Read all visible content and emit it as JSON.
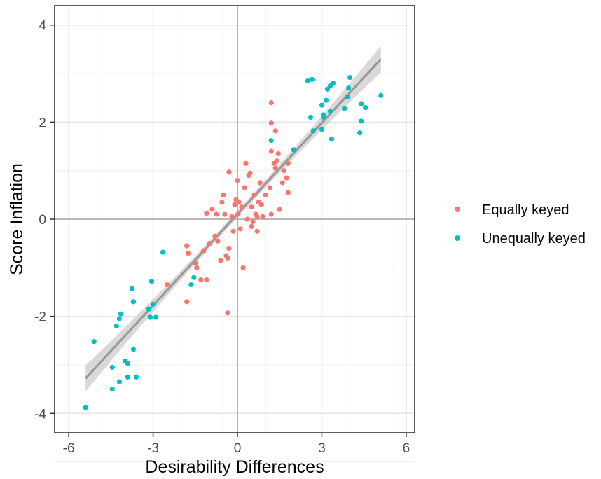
{
  "chart_data": {
    "type": "scatter",
    "title": "",
    "xlabel": "Desirability Differences",
    "ylabel": "Score Inflation",
    "xlim": [
      -6.5,
      6.3
    ],
    "ylim": [
      -4.4,
      4.4
    ],
    "x_ticks": [
      -6,
      -3,
      0,
      3,
      6
    ],
    "x_tick_labels": [
      "-6",
      "-3",
      "0",
      "3",
      "6"
    ],
    "y_ticks": [
      -4,
      -2,
      0,
      2,
      4
    ],
    "y_tick_labels": [
      "-4",
      "-2",
      "0",
      "2",
      "4"
    ],
    "grid": true,
    "zero_reference_lines": true,
    "legend_position": "right",
    "series": [
      {
        "name": "Equally keyed",
        "color": "#F8766D",
        "points": [
          [
            -2.5,
            -1.35
          ],
          [
            -1.8,
            -0.55
          ],
          [
            -1.75,
            -0.7
          ],
          [
            -1.8,
            -1.7
          ],
          [
            -1.5,
            -0.9
          ],
          [
            -1.45,
            -1.0
          ],
          [
            -1.3,
            -1.25
          ],
          [
            -1.2,
            -0.65
          ],
          [
            -1.1,
            -1.25
          ],
          [
            -1.1,
            0.12
          ],
          [
            -1.0,
            -0.5
          ],
          [
            -0.9,
            0.2
          ],
          [
            -0.8,
            -0.35
          ],
          [
            -0.75,
            0.1
          ],
          [
            -0.7,
            -0.45
          ],
          [
            -0.6,
            -0.85
          ],
          [
            -0.55,
            0.35
          ],
          [
            -0.5,
            0.5
          ],
          [
            -0.45,
            0.1
          ],
          [
            -0.4,
            -0.75
          ],
          [
            -0.35,
            -0.8
          ],
          [
            -0.35,
            -1.93
          ],
          [
            -0.3,
            0.97
          ],
          [
            -0.3,
            -0.6
          ],
          [
            -0.2,
            0.05
          ],
          [
            -0.15,
            -0.25
          ],
          [
            -0.1,
            0.3
          ],
          [
            -0.05,
            0.4
          ],
          [
            0.0,
            0.8
          ],
          [
            0.02,
            0.1
          ],
          [
            0.05,
            0.35
          ],
          [
            0.1,
            -0.2
          ],
          [
            0.15,
            0.25
          ],
          [
            0.2,
            -1.0
          ],
          [
            0.25,
            0.65
          ],
          [
            0.3,
            1.15
          ],
          [
            0.35,
            0.0
          ],
          [
            0.4,
            0.9
          ],
          [
            0.45,
            0.95
          ],
          [
            0.5,
            0.25
          ],
          [
            0.5,
            -0.15
          ],
          [
            0.55,
            -0.05
          ],
          [
            0.6,
            0.5
          ],
          [
            0.65,
            0.1
          ],
          [
            0.7,
            0.05
          ],
          [
            0.7,
            -0.25
          ],
          [
            0.75,
            0.35
          ],
          [
            0.8,
            0.75
          ],
          [
            0.85,
            0.3
          ],
          [
            0.9,
            0.05
          ],
          [
            1.0,
            0.5
          ],
          [
            1.15,
            0.65
          ],
          [
            1.2,
            1.4
          ],
          [
            1.2,
            0.1
          ],
          [
            1.2,
            1.98
          ],
          [
            1.2,
            2.4
          ],
          [
            1.3,
            1.15
          ],
          [
            1.35,
            1.82
          ],
          [
            1.35,
            1.05
          ],
          [
            1.4,
            1.2
          ],
          [
            1.45,
            1.35
          ],
          [
            1.5,
            0.2
          ],
          [
            1.6,
            0.75
          ],
          [
            1.65,
            1.0
          ],
          [
            1.75,
            0.85
          ],
          [
            1.8,
            0.55
          ],
          [
            1.8,
            1.15
          ]
        ]
      },
      {
        "name": "Unequally keyed",
        "color": "#00BFC4",
        "points": [
          [
            -5.4,
            -3.88
          ],
          [
            -5.1,
            -2.52
          ],
          [
            -4.45,
            -3.05
          ],
          [
            -4.45,
            -3.5
          ],
          [
            -4.3,
            -2.2
          ],
          [
            -4.2,
            -3.35
          ],
          [
            -4.2,
            -2.05
          ],
          [
            -4.15,
            -1.95
          ],
          [
            -4.0,
            -2.92
          ],
          [
            -3.9,
            -3.25
          ],
          [
            -3.9,
            -2.97
          ],
          [
            -3.75,
            -1.43
          ],
          [
            -3.7,
            -2.68
          ],
          [
            -3.7,
            -1.7
          ],
          [
            -3.6,
            -3.25
          ],
          [
            -3.15,
            -1.85
          ],
          [
            -3.1,
            -2.02
          ],
          [
            -3.05,
            -1.28
          ],
          [
            -3.0,
            -1.75
          ],
          [
            -2.9,
            -2.02
          ],
          [
            -2.65,
            -0.68
          ],
          [
            -1.65,
            -1.35
          ],
          [
            -1.55,
            -1.2
          ],
          [
            1.2,
            1.62
          ],
          [
            2.0,
            1.43
          ],
          [
            2.5,
            2.85
          ],
          [
            2.6,
            2.1
          ],
          [
            2.65,
            2.88
          ],
          [
            2.7,
            1.82
          ],
          [
            3.0,
            1.85
          ],
          [
            3.0,
            2.35
          ],
          [
            3.05,
            2.15
          ],
          [
            3.05,
            2.1
          ],
          [
            3.15,
            2.45
          ],
          [
            3.2,
            2.68
          ],
          [
            3.3,
            2.22
          ],
          [
            3.3,
            2.75
          ],
          [
            3.35,
            1.65
          ],
          [
            3.4,
            2.8
          ],
          [
            3.8,
            2.28
          ],
          [
            3.9,
            2.52
          ],
          [
            3.95,
            2.7
          ],
          [
            4.0,
            2.92
          ],
          [
            4.35,
            1.78
          ],
          [
            4.4,
            2.02
          ],
          [
            4.4,
            2.38
          ],
          [
            4.55,
            2.3
          ],
          [
            5.1,
            2.55
          ]
        ]
      }
    ],
    "smooth_line": {
      "method": "linear",
      "color": "#999999",
      "band_color": "#bfbfbf",
      "start": [
        -5.4,
        -3.28
      ],
      "end": [
        5.1,
        3.3
      ],
      "band_halfwidth_ends": 0.27,
      "band_halfwidth_center": 0.07
    }
  }
}
